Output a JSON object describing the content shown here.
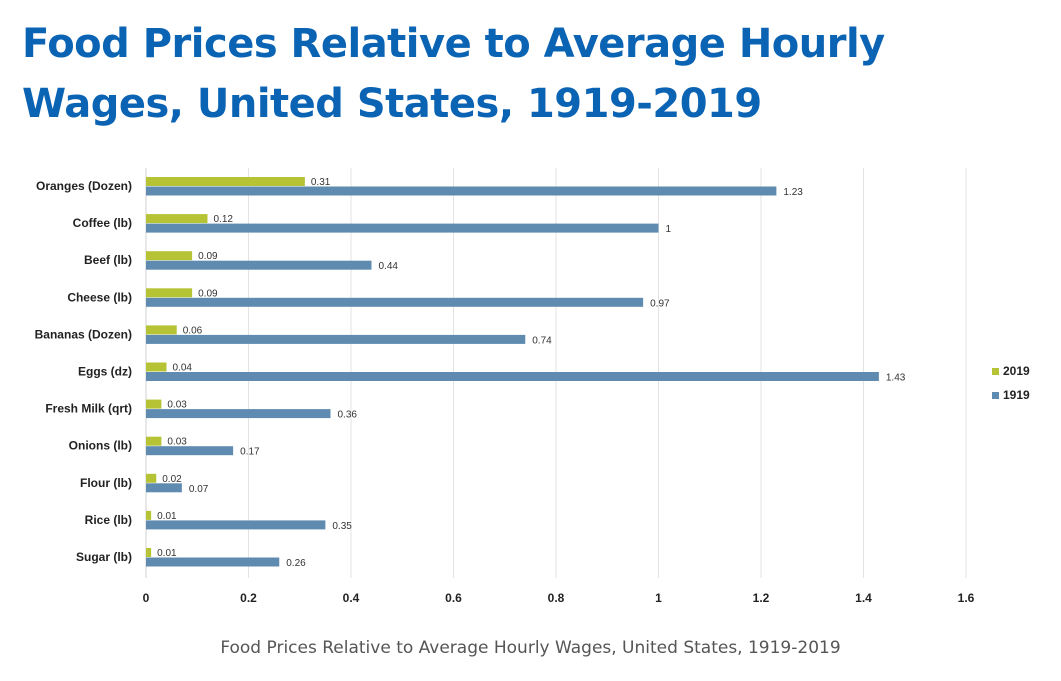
{
  "title": "Food Prices Relative to Average Hourly Wages, United States, 1919-2019",
  "caption": "Food Prices Relative to Average Hourly Wages, United States, 1919-2019",
  "chart_data": {
    "type": "bar",
    "orientation": "horizontal",
    "title": "",
    "xlabel": "",
    "ylabel": "",
    "categories": [
      "Oranges (Dozen)",
      "Coffee (lb)",
      "Beef (lb)",
      "Cheese (lb)",
      "Bananas (Dozen)",
      "Eggs (dz)",
      "Fresh Milk (qrt)",
      "Onions (lb)",
      "Flour (lb)",
      "Rice (lb)",
      "Sugar (lb)"
    ],
    "series": [
      {
        "name": "2019",
        "color": "#b5c335",
        "values": [
          0.31,
          0.12,
          0.09,
          0.09,
          0.06,
          0.04,
          0.03,
          0.03,
          0.02,
          0.01,
          0.01
        ]
      },
      {
        "name": "1919",
        "color": "#5f8bb0",
        "values": [
          1.23,
          1,
          0.44,
          0.97,
          0.74,
          1.43,
          0.36,
          0.17,
          0.07,
          0.35,
          0.26
        ]
      }
    ],
    "data_labels": {
      "2019": [
        "0.31",
        "0.12",
        "0.09",
        "0.09",
        "0.06",
        "0.04",
        "0.03",
        "0.03",
        "0.02",
        "0.01",
        "0.01"
      ],
      "1919": [
        "1.23",
        "1",
        "0.44",
        "0.97",
        "0.74",
        "1.43",
        "0.36",
        "0.17",
        "0.07",
        "0.35",
        "0.26"
      ]
    },
    "xlim": [
      0,
      1.6
    ],
    "xticks": [
      0,
      0.2,
      0.4,
      0.6,
      0.8,
      1,
      1.2,
      1.4,
      1.6
    ],
    "xtick_labels": [
      "0",
      "0.2",
      "0.4",
      "0.6",
      "0.8",
      "1",
      "1.2",
      "1.4",
      "1.6"
    ],
    "grid": "vertical",
    "legend_position": "right"
  }
}
